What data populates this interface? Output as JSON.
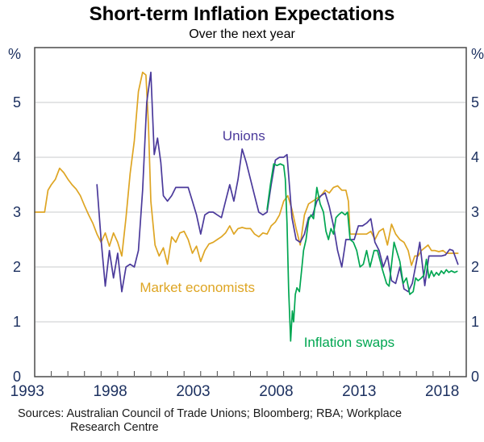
{
  "header": {
    "title": "Short-term Inflation Expectations",
    "subtitle": "Over the next year"
  },
  "footer": {
    "line1": "Sources: Australian Council of Trade Unions; Bloomberg; RBA; Workplace",
    "line2": "Research Centre"
  },
  "chart_data": {
    "type": "line",
    "title": "Short-term Inflation Expectations",
    "subtitle": "Over the next year",
    "colors": {
      "grid": "#c9cbcd",
      "frame": "#4a4a4a",
      "text": "#1d3160",
      "unions": "#4b3a9b",
      "market_economists": "#dea523",
      "inflation_swaps": "#00a651"
    },
    "x_axis": {
      "min": 1993,
      "max": 2019,
      "minor_tick_interval": 1,
      "major_tick_labels": [
        1993,
        1998,
        2003,
        2008,
        2013,
        2018
      ]
    },
    "y_axis": {
      "min": 0,
      "max": 6,
      "unit": "%",
      "ticks": [
        0,
        1,
        2,
        3,
        4,
        5
      ],
      "gridlines": [
        1,
        2,
        3,
        4,
        5
      ]
    },
    "series": [
      {
        "id": "market_economists",
        "name": "Market economists",
        "color": "#dea523",
        "label": {
          "text": "Market economists",
          "x": 2002.8,
          "y": 1.63
        },
        "points": [
          [
            1993.0,
            3.0
          ],
          [
            1993.3,
            3.0
          ],
          [
            1993.6,
            3.0
          ],
          [
            1993.8,
            3.4
          ],
          [
            1994.0,
            3.5
          ],
          [
            1994.25,
            3.6
          ],
          [
            1994.5,
            3.8
          ],
          [
            1994.75,
            3.72
          ],
          [
            1995.0,
            3.6
          ],
          [
            1995.25,
            3.5
          ],
          [
            1995.5,
            3.42
          ],
          [
            1995.75,
            3.3
          ],
          [
            1996.0,
            3.12
          ],
          [
            1996.25,
            2.95
          ],
          [
            1996.5,
            2.8
          ],
          [
            1996.75,
            2.6
          ],
          [
            1997.0,
            2.45
          ],
          [
            1997.25,
            2.62
          ],
          [
            1997.5,
            2.38
          ],
          [
            1997.75,
            2.62
          ],
          [
            1998.0,
            2.45
          ],
          [
            1998.25,
            2.2
          ],
          [
            1998.5,
            2.9
          ],
          [
            1998.75,
            3.7
          ],
          [
            1999.0,
            4.3
          ],
          [
            1999.25,
            5.2
          ],
          [
            1999.5,
            5.55
          ],
          [
            1999.7,
            5.5
          ],
          [
            1999.85,
            4.6
          ],
          [
            2000.0,
            3.2
          ],
          [
            2000.25,
            2.4
          ],
          [
            2000.5,
            2.2
          ],
          [
            2000.75,
            2.35
          ],
          [
            2001.0,
            2.05
          ],
          [
            2001.25,
            2.55
          ],
          [
            2001.5,
            2.45
          ],
          [
            2001.75,
            2.62
          ],
          [
            2002.0,
            2.65
          ],
          [
            2002.25,
            2.5
          ],
          [
            2002.5,
            2.25
          ],
          [
            2002.75,
            2.38
          ],
          [
            2003.0,
            2.1
          ],
          [
            2003.25,
            2.3
          ],
          [
            2003.5,
            2.42
          ],
          [
            2003.75,
            2.45
          ],
          [
            2004.0,
            2.5
          ],
          [
            2004.25,
            2.55
          ],
          [
            2004.5,
            2.62
          ],
          [
            2004.75,
            2.75
          ],
          [
            2005.0,
            2.6
          ],
          [
            2005.25,
            2.7
          ],
          [
            2005.5,
            2.72
          ],
          [
            2005.75,
            2.7
          ],
          [
            2006.0,
            2.7
          ],
          [
            2006.25,
            2.6
          ],
          [
            2006.5,
            2.55
          ],
          [
            2006.75,
            2.62
          ],
          [
            2007.0,
            2.6
          ],
          [
            2007.25,
            2.75
          ],
          [
            2007.5,
            2.82
          ],
          [
            2007.75,
            2.95
          ],
          [
            2008.0,
            3.2
          ],
          [
            2008.25,
            3.3
          ],
          [
            2008.5,
            3.05
          ],
          [
            2008.75,
            2.7
          ],
          [
            2009.0,
            2.4
          ],
          [
            2009.25,
            2.95
          ],
          [
            2009.5,
            3.15
          ],
          [
            2009.75,
            3.2
          ],
          [
            2010.0,
            3.25
          ],
          [
            2010.25,
            3.3
          ],
          [
            2010.5,
            3.4
          ],
          [
            2010.75,
            3.35
          ],
          [
            2011.0,
            3.45
          ],
          [
            2011.25,
            3.48
          ],
          [
            2011.5,
            3.4
          ],
          [
            2011.75,
            3.4
          ],
          [
            2011.9,
            3.2
          ],
          [
            2012.0,
            2.6
          ],
          [
            2012.25,
            2.6
          ],
          [
            2012.5,
            2.6
          ],
          [
            2012.75,
            2.6
          ],
          [
            2013.0,
            2.6
          ],
          [
            2013.25,
            2.65
          ],
          [
            2013.5,
            2.5
          ],
          [
            2013.75,
            2.65
          ],
          [
            2014.0,
            2.7
          ],
          [
            2014.25,
            2.4
          ],
          [
            2014.5,
            2.78
          ],
          [
            2014.75,
            2.6
          ],
          [
            2015.0,
            2.5
          ],
          [
            2015.25,
            2.45
          ],
          [
            2015.5,
            2.3
          ],
          [
            2015.7,
            2.03
          ],
          [
            2015.9,
            2.2
          ],
          [
            2016.1,
            2.2
          ],
          [
            2016.3,
            2.3
          ],
          [
            2016.5,
            2.35
          ],
          [
            2016.7,
            2.4
          ],
          [
            2016.9,
            2.3
          ],
          [
            2017.1,
            2.3
          ],
          [
            2017.35,
            2.28
          ],
          [
            2017.6,
            2.3
          ],
          [
            2017.8,
            2.25
          ],
          [
            2018.0,
            2.25
          ],
          [
            2018.25,
            2.25
          ],
          [
            2018.5,
            2.25
          ]
        ]
      },
      {
        "id": "unions",
        "name": "Unions",
        "color": "#4b3a9b",
        "label": {
          "text": "Unions",
          "x": 2005.6,
          "y": 4.4
        },
        "points": [
          [
            1996.75,
            3.5
          ],
          [
            1997.0,
            2.5
          ],
          [
            1997.25,
            1.65
          ],
          [
            1997.5,
            2.3
          ],
          [
            1997.75,
            1.8
          ],
          [
            1998.0,
            2.25
          ],
          [
            1998.25,
            1.55
          ],
          [
            1998.5,
            2.0
          ],
          [
            1998.75,
            2.05
          ],
          [
            1999.0,
            2.0
          ],
          [
            1999.25,
            2.3
          ],
          [
            1999.5,
            3.4
          ],
          [
            1999.75,
            5.0
          ],
          [
            2000.0,
            5.55
          ],
          [
            2000.2,
            4.05
          ],
          [
            2000.4,
            4.35
          ],
          [
            2000.6,
            3.9
          ],
          [
            2000.75,
            3.3
          ],
          [
            2001.0,
            3.2
          ],
          [
            2001.25,
            3.3
          ],
          [
            2001.5,
            3.45
          ],
          [
            2001.75,
            3.45
          ],
          [
            2002.0,
            3.45
          ],
          [
            2002.25,
            3.45
          ],
          [
            2002.5,
            3.2
          ],
          [
            2002.75,
            2.95
          ],
          [
            2003.0,
            2.6
          ],
          [
            2003.25,
            2.95
          ],
          [
            2003.5,
            3.0
          ],
          [
            2003.75,
            3.0
          ],
          [
            2004.0,
            2.95
          ],
          [
            2004.25,
            2.9
          ],
          [
            2004.5,
            3.2
          ],
          [
            2004.75,
            3.5
          ],
          [
            2005.0,
            3.2
          ],
          [
            2005.25,
            3.6
          ],
          [
            2005.5,
            4.15
          ],
          [
            2005.75,
            3.9
          ],
          [
            2006.0,
            3.6
          ],
          [
            2006.25,
            3.3
          ],
          [
            2006.5,
            3.0
          ],
          [
            2006.75,
            2.95
          ],
          [
            2007.0,
            3.0
          ],
          [
            2007.25,
            3.5
          ],
          [
            2007.5,
            3.95
          ],
          [
            2007.75,
            4.0
          ],
          [
            2008.0,
            4.0
          ],
          [
            2008.2,
            4.05
          ],
          [
            2008.5,
            2.9
          ],
          [
            2008.75,
            2.5
          ],
          [
            2009.0,
            2.45
          ],
          [
            2009.25,
            2.6
          ],
          [
            2009.5,
            2.9
          ],
          [
            2009.75,
            2.95
          ],
          [
            2010.0,
            3.2
          ],
          [
            2010.25,
            3.3
          ],
          [
            2010.5,
            3.35
          ],
          [
            2010.75,
            3.1
          ],
          [
            2011.0,
            2.75
          ],
          [
            2011.25,
            2.3
          ],
          [
            2011.5,
            2.0
          ],
          [
            2011.75,
            2.5
          ],
          [
            2012.0,
            2.5
          ],
          [
            2012.25,
            2.5
          ],
          [
            2012.5,
            2.75
          ],
          [
            2012.75,
            2.75
          ],
          [
            2013.0,
            2.8
          ],
          [
            2013.25,
            2.88
          ],
          [
            2013.5,
            2.45
          ],
          [
            2013.75,
            2.3
          ],
          [
            2014.0,
            2.0
          ],
          [
            2014.25,
            2.2
          ],
          [
            2014.5,
            1.75
          ],
          [
            2014.75,
            1.7
          ],
          [
            2015.0,
            2.0
          ],
          [
            2015.25,
            1.6
          ],
          [
            2015.5,
            1.55
          ],
          [
            2015.75,
            1.7
          ],
          [
            2016.0,
            2.1
          ],
          [
            2016.2,
            2.45
          ],
          [
            2016.5,
            1.66
          ],
          [
            2016.75,
            2.2
          ],
          [
            2017.0,
            2.2
          ],
          [
            2017.25,
            2.2
          ],
          [
            2017.5,
            2.2
          ],
          [
            2017.75,
            2.22
          ],
          [
            2018.0,
            2.32
          ],
          [
            2018.2,
            2.3
          ],
          [
            2018.5,
            2.05
          ]
        ]
      },
      {
        "id": "inflation_swaps",
        "name": "Inflation swaps",
        "color": "#00a651",
        "label": {
          "text": "Inflation swaps",
          "x": 2011.95,
          "y": 0.63
        },
        "points": [
          [
            2007.0,
            3.05
          ],
          [
            2007.2,
            3.5
          ],
          [
            2007.4,
            3.88
          ],
          [
            2007.6,
            3.85
          ],
          [
            2007.8,
            3.88
          ],
          [
            2008.0,
            3.85
          ],
          [
            2008.1,
            3.6
          ],
          [
            2008.2,
            2.8
          ],
          [
            2008.3,
            1.6
          ],
          [
            2008.42,
            0.65
          ],
          [
            2008.52,
            1.2
          ],
          [
            2008.6,
            1.0
          ],
          [
            2008.7,
            1.5
          ],
          [
            2008.8,
            1.62
          ],
          [
            2008.95,
            1.55
          ],
          [
            2009.1,
            2.0
          ],
          [
            2009.2,
            2.3
          ],
          [
            2009.35,
            2.5
          ],
          [
            2009.5,
            2.85
          ],
          [
            2009.65,
            2.95
          ],
          [
            2009.8,
            2.88
          ],
          [
            2010.0,
            3.45
          ],
          [
            2010.2,
            3.15
          ],
          [
            2010.4,
            3.0
          ],
          [
            2010.55,
            2.65
          ],
          [
            2010.7,
            2.5
          ],
          [
            2010.85,
            2.7
          ],
          [
            2011.0,
            2.6
          ],
          [
            2011.15,
            2.9
          ],
          [
            2011.3,
            2.95
          ],
          [
            2011.5,
            3.0
          ],
          [
            2011.7,
            2.95
          ],
          [
            2011.85,
            3.0
          ],
          [
            2012.0,
            2.5
          ],
          [
            2012.2,
            2.45
          ],
          [
            2012.4,
            2.3
          ],
          [
            2012.6,
            2.0
          ],
          [
            2012.8,
            2.05
          ],
          [
            2013.0,
            2.3
          ],
          [
            2013.2,
            2.0
          ],
          [
            2013.45,
            2.3
          ],
          [
            2013.65,
            2.3
          ],
          [
            2013.95,
            1.95
          ],
          [
            2014.2,
            1.7
          ],
          [
            2014.35,
            1.65
          ],
          [
            2014.65,
            2.45
          ],
          [
            2015.0,
            2.1
          ],
          [
            2015.2,
            1.7
          ],
          [
            2015.4,
            1.8
          ],
          [
            2015.6,
            1.5
          ],
          [
            2015.8,
            1.55
          ],
          [
            2015.95,
            1.8
          ],
          [
            2016.1,
            1.75
          ],
          [
            2016.3,
            1.8
          ],
          [
            2016.45,
            1.85
          ],
          [
            2016.6,
            2.14
          ],
          [
            2016.75,
            1.8
          ],
          [
            2016.9,
            1.93
          ],
          [
            2017.05,
            1.83
          ],
          [
            2017.2,
            1.9
          ],
          [
            2017.35,
            1.85
          ],
          [
            2017.5,
            1.93
          ],
          [
            2017.65,
            1.88
          ],
          [
            2017.8,
            1.95
          ],
          [
            2017.95,
            1.9
          ],
          [
            2018.1,
            1.93
          ],
          [
            2018.3,
            1.9
          ],
          [
            2018.45,
            1.92
          ]
        ]
      }
    ]
  }
}
